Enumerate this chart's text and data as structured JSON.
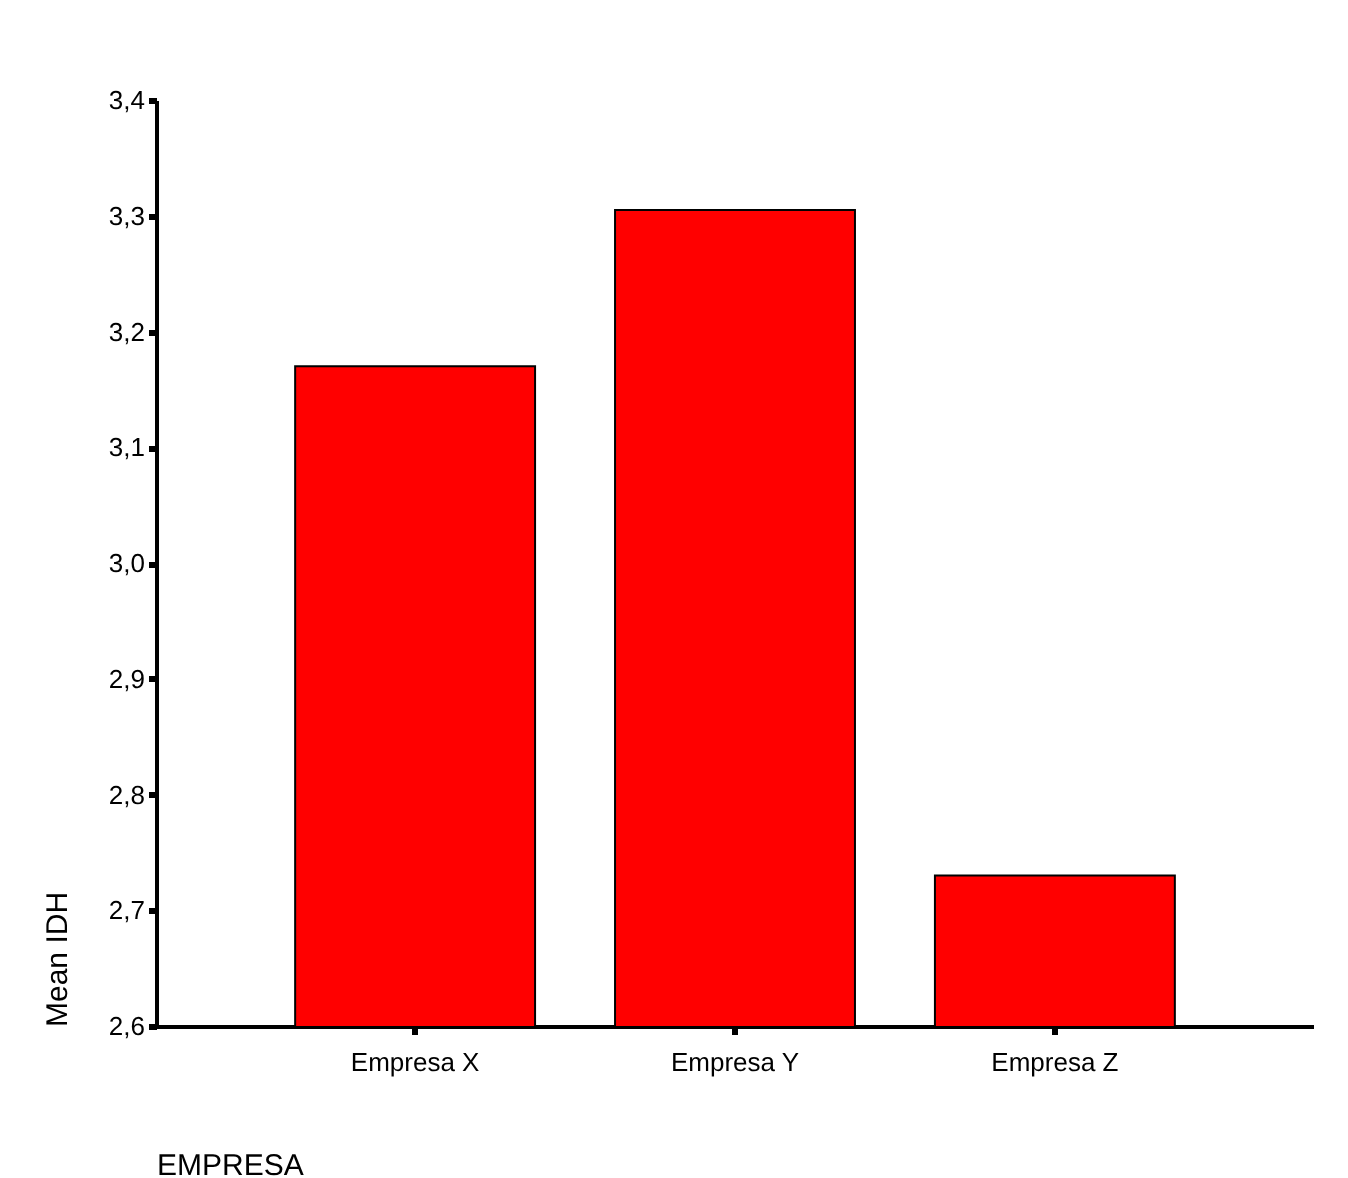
{
  "chart_data": {
    "type": "bar",
    "xlabel": "EMPRESA",
    "ylabel": "Mean IDH",
    "categories": [
      "Empresa  X",
      "Empresa Y",
      "Empresa  Z"
    ],
    "values": [
      3.17,
      3.305,
      2.73
    ],
    "color": "#ff0000",
    "ylim": [
      2.6,
      3.4
    ],
    "yticks": [
      {
        "value": 2.6,
        "label": "2,6"
      },
      {
        "value": 2.7,
        "label": "2,7"
      },
      {
        "value": 2.8,
        "label": "2,8"
      },
      {
        "value": 2.9,
        "label": "2,9"
      },
      {
        "value": 3.0,
        "label": "3,0"
      },
      {
        "value": 3.1,
        "label": "3,1"
      },
      {
        "value": 3.2,
        "label": "3,2"
      },
      {
        "value": 3.3,
        "label": "3,3"
      },
      {
        "value": 3.4,
        "label": "3,4"
      }
    ],
    "grid": false
  }
}
